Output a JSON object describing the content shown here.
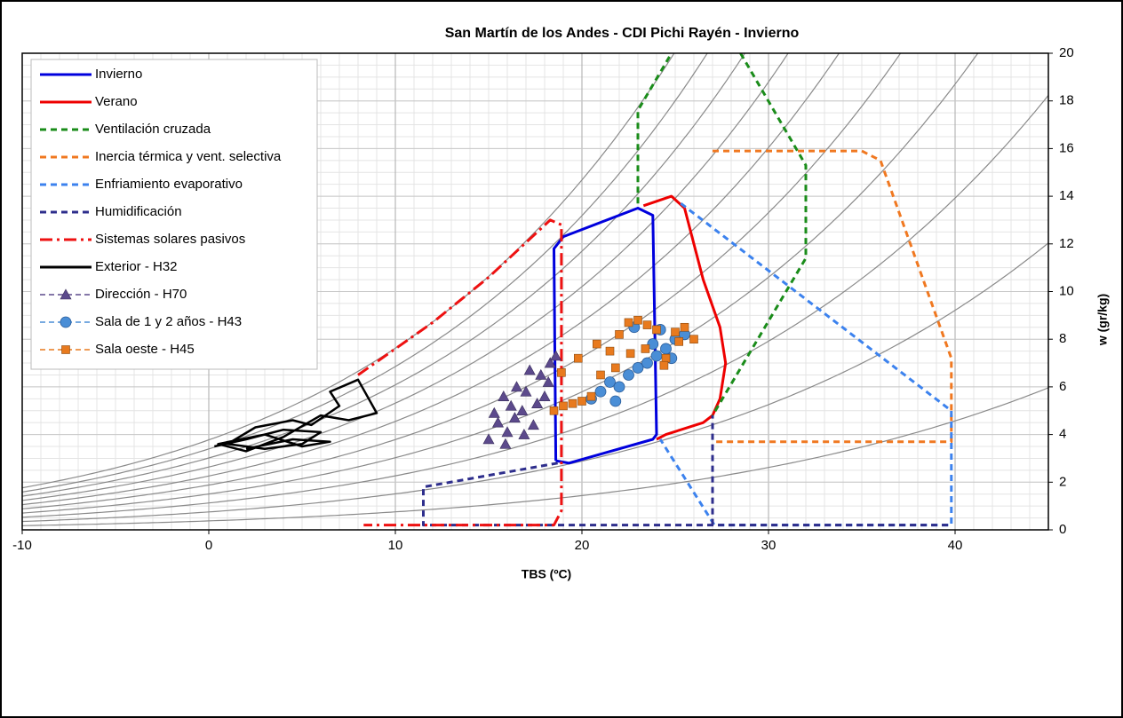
{
  "chart_data": {
    "type": "line",
    "title": "San Martín de los Andes - CDI Pichi Rayén - Invierno",
    "x_label": "TBS (ºC)",
    "y_label": "w (gr/kg)",
    "xlim": [
      -10,
      45
    ],
    "xticks": [
      -10,
      0,
      10,
      20,
      30,
      40
    ],
    "ylim": [
      0,
      20
    ],
    "yticks": [
      0,
      2,
      4,
      6,
      8,
      10,
      12,
      14,
      16,
      18,
      20
    ],
    "grid": true,
    "legend": "upper left",
    "rh_levels": [
      10,
      20,
      30,
      40,
      50,
      60,
      70,
      80,
      90,
      100
    ],
    "series": [
      {
        "name": "Invierno",
        "color": "#0000dd",
        "dash": "solid",
        "mode": "line",
        "x": [
          18.6,
          18.5,
          19,
          23,
          23.8,
          24,
          23.8,
          19.3,
          18.6
        ],
        "y": [
          2.9,
          11.8,
          12.3,
          13.5,
          13.2,
          4,
          3.8,
          2.8,
          2.9
        ]
      },
      {
        "name": "Verano",
        "color": "#ee0000",
        "dash": "solid",
        "mode": "line",
        "x": [
          23.3,
          24.8,
          25.5,
          26.5,
          27.4,
          27.7,
          27.4,
          27,
          26.5,
          24.5,
          24
        ],
        "y": [
          13.6,
          14,
          13.5,
          10.5,
          8.5,
          7,
          5.5,
          4.8,
          4.5,
          4,
          3.8
        ]
      },
      {
        "name": "Ventilación cruzada",
        "color": "#1a8c1a",
        "dash": "dashed",
        "mode": "line",
        "x": [
          23,
          23,
          24.8,
          null,
          28.5,
          32,
          32,
          27
        ],
        "y": [
          13.7,
          17.6,
          20,
          null,
          20,
          15.3,
          11.4,
          4.8
        ]
      },
      {
        "name": "Inercia térmica y vent. selectiva",
        "color": "#f07820",
        "dash": "dashed",
        "mode": "line",
        "x": [
          27,
          35,
          36,
          39.8,
          39.8,
          27
        ],
        "y": [
          15.9,
          15.9,
          15.5,
          7.2,
          3.7,
          3.7
        ]
      },
      {
        "name": "Enfriamiento evaporativo",
        "color": "#3c82ee",
        "dash": "dashed",
        "mode": "line",
        "x": [
          25.3,
          39.8,
          39.8,
          27.1,
          24.2
        ],
        "y": [
          13.7,
          5,
          0.2,
          0.2,
          3.8
        ]
      },
      {
        "name": "Humidificación",
        "color": "#2e2e8c",
        "dash": "dashed",
        "mode": "line",
        "x": [
          18.7,
          11.5,
          11.5,
          39.8,
          null,
          27,
          27
        ],
        "y": [
          2.8,
          1.8,
          0.2,
          0.2,
          null,
          0.2,
          4.8
        ]
      },
      {
        "name": "Sistemas solares pasivos",
        "color": "#ee1111",
        "dash": "dashdot",
        "mode": "line",
        "x": [
          8,
          12,
          15,
          18.3,
          18.9,
          18.9,
          18.5,
          8.3
        ],
        "y": [
          6.5,
          8.7,
          10.6,
          13,
          12.8,
          0.8,
          0.2,
          0.2
        ]
      },
      {
        "name": "Exterior - H32",
        "color": "#000000",
        "dash": "solid",
        "mode": "line",
        "x": [
          0.3,
          2,
          4,
          6,
          5,
          3,
          1,
          2.5,
          4.5,
          5.5,
          7,
          6.5,
          8,
          9,
          7.5,
          6,
          4,
          2,
          0.5,
          3,
          5,
          6.5,
          4.5,
          2
        ],
        "y": [
          3.5,
          3.8,
          4.2,
          4.1,
          3.6,
          3.4,
          3.6,
          4.3,
          4.6,
          4.4,
          5.2,
          5.8,
          6.3,
          4.9,
          4.6,
          4.8,
          3.9,
          3.3,
          3.6,
          4,
          3.5,
          3.7,
          3.8,
          3.4
        ]
      },
      {
        "name": "Dirección - H70",
        "color": "#5c4a8c",
        "dash": "dashed",
        "mode": "markers",
        "marker": "triangle",
        "x": [
          15,
          15.5,
          16,
          16.2,
          16.8,
          17,
          17.4,
          17.8,
          18,
          18.3,
          16.5,
          15.8,
          17.2,
          18.6,
          15.3,
          16.9,
          17.6,
          18.2,
          15.9,
          16.4
        ],
        "y": [
          3.8,
          4.5,
          4.1,
          5.2,
          5,
          5.8,
          4.4,
          6.5,
          5.6,
          7,
          6,
          5.6,
          6.7,
          7.3,
          4.9,
          4,
          5.3,
          6.2,
          3.6,
          4.7
        ]
      },
      {
        "name": "Sala de 1 y 2 años - H43",
        "color": "#4a8ed6",
        "dash": "dashed",
        "mode": "markers",
        "marker": "circle",
        "x": [
          20.5,
          21,
          21.5,
          22,
          22.5,
          23,
          23.5,
          24,
          24.5,
          25,
          25.5,
          22.8,
          23.8,
          24.8,
          21.8,
          24.2
        ],
        "y": [
          5.5,
          5.8,
          6.2,
          6,
          6.5,
          6.8,
          7,
          7.3,
          7.6,
          8,
          8.2,
          8.5,
          7.8,
          7.2,
          5.4,
          8.4
        ]
      },
      {
        "name": "Sala oeste - H45",
        "color": "#e87a1e",
        "dash": "dashed",
        "mode": "markers",
        "marker": "square",
        "x": [
          18.5,
          19,
          19.5,
          20,
          20.5,
          21,
          21.5,
          22,
          22.5,
          23,
          23.5,
          24,
          24.5,
          25,
          25.5,
          26,
          19.8,
          20.8,
          21.8,
          22.6,
          23.4,
          24.4,
          25.2,
          18.9
        ],
        "y": [
          5,
          5.2,
          5.3,
          5.4,
          5.6,
          6.5,
          7.5,
          8.2,
          8.7,
          8.8,
          8.6,
          8.4,
          7.2,
          8.3,
          8.5,
          8,
          7.2,
          7.8,
          6.8,
          7.4,
          7.6,
          6.9,
          7.9,
          6.6
        ]
      }
    ]
  }
}
